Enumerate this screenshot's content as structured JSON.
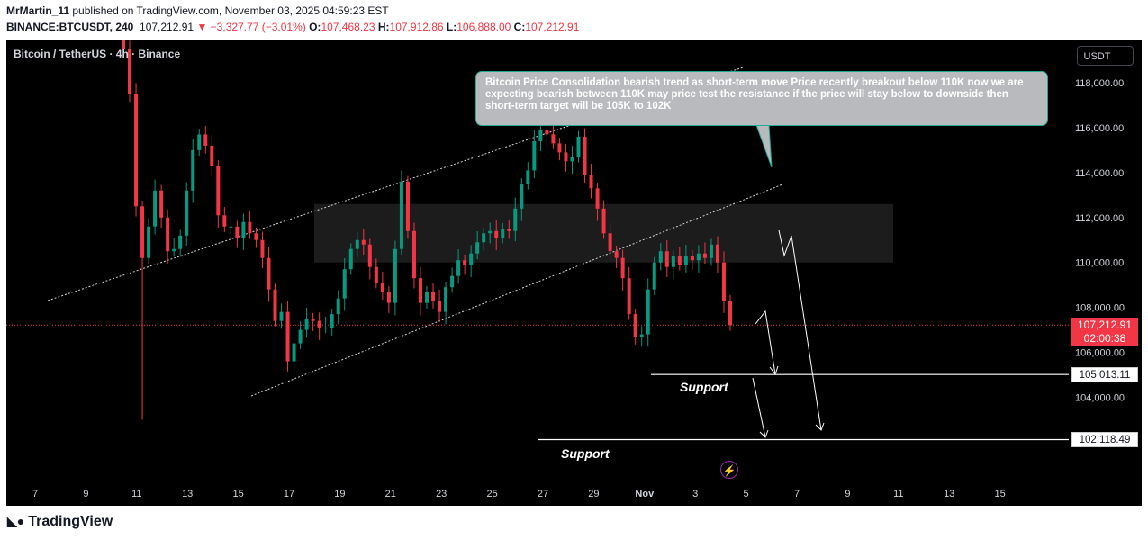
{
  "header": {
    "publisher": "MrMartin_11",
    "published_text": "published on TradingView.com, November 03, 2025 04:59:23 EST",
    "symbol_code": "BINANCE:BTCUSDT, 240",
    "last": "107,212.91",
    "change": "−3,327.77 (−3.01%)",
    "open_label": "O:",
    "open": "107,468.23",
    "high_label": "H:",
    "high": "107,912.86",
    "low_label": "L:",
    "low": "106,888.00",
    "close_label": "C:",
    "close": "107,212.91"
  },
  "chart": {
    "symbol_label": "Bitcoin / TetherUS · 4h · Binance",
    "currency": "USDT",
    "note": "Bitcoin Price Consolidation bearish trend as short-term move Price recently breakout below 110K now we are expecting bearish between 110K may price test the resistance if the price will stay  below to downside then short-term target will be 105K to 102K",
    "support_label_1": "Support",
    "support_label_2": "Support",
    "current_price": "107,212.91",
    "countdown": "02:00:38",
    "level_1": "105,013.11",
    "level_2": "102,118.49"
  },
  "chart_data": {
    "type": "candlestick",
    "title": "Bitcoin / TetherUS · 4h · Binance",
    "y_ticks": [
      "104,000.00",
      "106,000.00",
      "108,000.00",
      "110,000.00",
      "112,000.00",
      "114,000.00",
      "116,000.00",
      "118,000.00"
    ],
    "ylim": [
      101000,
      119500
    ],
    "x_ticks": [
      "7",
      "9",
      "11",
      "13",
      "15",
      "17",
      "19",
      "21",
      "23",
      "25",
      "27",
      "29",
      "Nov",
      "3",
      "5",
      "7",
      "9",
      "11",
      "13",
      "15"
    ],
    "colors": {
      "up": "#089981",
      "down": "#f23645",
      "background": "#000000",
      "annotation": "#ffffff"
    },
    "series": [
      {
        "name": "BTCUSDT 4h (approx. closes)",
        "values": [
          119500,
          117500,
          112500,
          110200,
          111600,
          113200,
          112000,
          110500,
          110600,
          111200,
          113200,
          115000,
          115700,
          115200,
          114300,
          112100,
          111600,
          111600,
          111100,
          111800,
          111300,
          111000,
          110200,
          108800,
          107400,
          107800,
          105600,
          106400,
          107000,
          107500,
          107400,
          107100,
          107100,
          107700,
          108400,
          109700,
          110600,
          111000,
          110800,
          109800,
          109100,
          108700,
          108200,
          110600,
          113600,
          111400,
          109300,
          108200,
          108700,
          108300,
          107800,
          108900,
          109400,
          110100,
          109900,
          110400,
          110900,
          111300,
          111400,
          111100,
          111500,
          111400,
          112400,
          113500,
          114100,
          115400,
          115900,
          115700,
          115300,
          114900,
          114500,
          114700,
          115600,
          113900,
          113300,
          112400,
          111300,
          110500,
          110200,
          109300,
          107700,
          106700,
          106800,
          108800,
          110000,
          110500,
          109800,
          110300,
          109900,
          110300,
          110100,
          110400,
          110200,
          110800,
          110000,
          108300,
          107213
        ]
      }
    ],
    "levels": [
      {
        "label": "Support",
        "value": 105013.11
      },
      {
        "label": "Support",
        "value": 102118.49
      }
    ],
    "consolidation_zone": [
      110000,
      112600
    ],
    "last_price": 107212.91
  }
}
